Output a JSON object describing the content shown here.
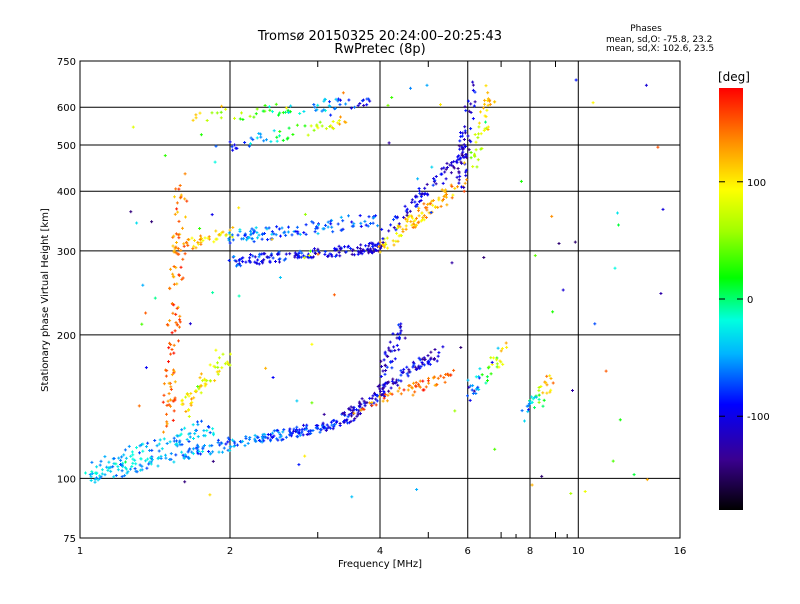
{
  "chart_data": {
    "type": "scatter",
    "title": "Tromsø 20150325 20:24:00–20:25:43",
    "subtitle": "RwPretec (8p)",
    "xlabel": "Frequency [MHz]",
    "ylabel": "Stationary phase Virtual Height [km]",
    "x_scale": "log",
    "y_scale": "log",
    "xlim": [
      1,
      16
    ],
    "ylim": [
      75,
      750
    ],
    "x_ticks": [
      1,
      2,
      4,
      6,
      8,
      10,
      16
    ],
    "x_minor_ticks": [
      3,
      5,
      7,
      9
    ],
    "y_ticks": [
      75,
      100,
      200,
      300,
      400,
      500,
      600,
      750
    ],
    "grid": true,
    "info": {
      "heading": "Phases",
      "line1": "mean, sd,O: -75.8, 23.2",
      "line2": "mean, sd,X: 102.6, 23.5"
    },
    "colorbar": {
      "label": "[deg]",
      "range": [
        -180,
        180
      ],
      "ticks": [
        100,
        0,
        -100
      ],
      "placement": "right"
    },
    "series": [
      {
        "traces": [
          {
            "x0": 1.02,
            "x1": 2.0,
            "y0": 100,
            "y1": 118,
            "c0": -40,
            "c1": -60,
            "n": 120,
            "jx": 0.02,
            "jy": 0.03
          },
          {
            "x0": 2.0,
            "x1": 3.3,
            "y0": 118,
            "y1": 130,
            "c0": -60,
            "c1": -90,
            "n": 130,
            "jx": 0.015,
            "jy": 0.025
          },
          {
            "x0": 3.3,
            "x1": 4.3,
            "y0": 130,
            "y1": 160,
            "c0": -100,
            "c1": -110,
            "n": 90,
            "jx": 0.015,
            "jy": 0.03
          },
          {
            "x0": 4.0,
            "x1": 4.4,
            "y0": 160,
            "y1": 205,
            "c0": -110,
            "c1": -100,
            "n": 45,
            "jx": 0.025,
            "jy": 0.04
          },
          {
            "x0": 4.3,
            "x1": 5.3,
            "y0": 160,
            "y1": 185,
            "c0": -100,
            "c1": -110,
            "n": 55,
            "jx": 0.02,
            "jy": 0.03
          },
          {
            "x0": 3.6,
            "x1": 5.6,
            "y0": 140,
            "y1": 165,
            "c0": 140,
            "c1": 150,
            "n": 60,
            "jx": 0.02,
            "jy": 0.025
          },
          {
            "x0": 1.05,
            "x1": 1.9,
            "y0": 105,
            "y1": 130,
            "c0": -40,
            "c1": -50,
            "n": 90,
            "jx": 0.03,
            "jy": 0.04
          },
          {
            "x0": 1.5,
            "x1": 1.6,
            "y0": 130,
            "y1": 420,
            "c0": 150,
            "c1": 140,
            "n": 110,
            "jx": 0.03,
            "jy": 0.05
          },
          {
            "x0": 1.6,
            "x1": 2.0,
            "y0": 140,
            "y1": 180,
            "c0": 110,
            "c1": 80,
            "n": 55,
            "jx": 0.025,
            "jy": 0.04
          },
          {
            "x0": 1.55,
            "x1": 2.0,
            "y0": 300,
            "y1": 330,
            "c0": 130,
            "c1": 90,
            "n": 45,
            "jx": 0.02,
            "jy": 0.03
          },
          {
            "x0": 2.0,
            "x1": 4.0,
            "y0": 285,
            "y1": 305,
            "c0": -80,
            "c1": -110,
            "n": 160,
            "jx": 0.015,
            "jy": 0.025
          },
          {
            "x0": 2.0,
            "x1": 4.0,
            "y0": 320,
            "y1": 350,
            "c0": -55,
            "c1": -75,
            "n": 110,
            "jx": 0.015,
            "jy": 0.035
          },
          {
            "x0": 4.0,
            "x1": 5.9,
            "y0": 305,
            "y1": 420,
            "c0": 100,
            "c1": 130,
            "n": 100,
            "jx": 0.015,
            "jy": 0.04
          },
          {
            "x0": 4.0,
            "x1": 5.9,
            "y0": 320,
            "y1": 480,
            "c0": -100,
            "c1": -110,
            "n": 80,
            "jx": 0.015,
            "jy": 0.04
          },
          {
            "x0": 5.8,
            "x1": 6.1,
            "y0": 420,
            "y1": 660,
            "c0": -110,
            "c1": -110,
            "n": 55,
            "jx": 0.025,
            "jy": 0.05
          },
          {
            "x0": 6.1,
            "x1": 6.7,
            "y0": 430,
            "y1": 640,
            "c0": 60,
            "c1": 120,
            "n": 40,
            "jx": 0.025,
            "jy": 0.05
          },
          {
            "x0": 1.7,
            "x1": 3.8,
            "y0": 570,
            "y1": 620,
            "c0": 100,
            "c1": -100,
            "n": 70,
            "jx": 0.02,
            "jy": 0.03
          },
          {
            "x0": 2.0,
            "x1": 3.5,
            "y0": 500,
            "y1": 560,
            "c0": -90,
            "c1": 130,
            "n": 50,
            "jx": 0.02,
            "jy": 0.03
          },
          {
            "x0": 6.0,
            "x1": 7.1,
            "y0": 150,
            "y1": 185,
            "c0": -100,
            "c1": 120,
            "n": 40,
            "jx": 0.03,
            "jy": 0.05
          },
          {
            "x0": 7.8,
            "x1": 8.9,
            "y0": 135,
            "y1": 160,
            "c0": -70,
            "c1": 150,
            "n": 35,
            "jx": 0.03,
            "jy": 0.05
          },
          {
            "x0": 1.2,
            "x1": 15.0,
            "y0": 90,
            "y1": 680,
            "c0": -150,
            "c1": 160,
            "n": 100,
            "jx": 0.05,
            "jy": 0.05
          }
        ]
      }
    ]
  }
}
